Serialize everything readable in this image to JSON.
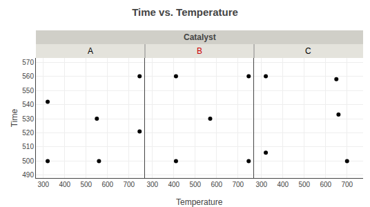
{
  "chart_data": {
    "type": "scatter",
    "title": "Time vs. Temperature",
    "xlabel": "Temperature",
    "ylabel": "Time",
    "facet_label": "Catalyst",
    "color": "#000000",
    "series": [
      {
        "name": "A",
        "label_color": "#000000",
        "x": [
          320,
          550,
          750,
          750,
          320,
          560
        ],
        "values": [
          542,
          530,
          560,
          521,
          500,
          500
        ]
      },
      {
        "name": "B",
        "label_color": "#cc0000",
        "x": [
          410,
          570,
          750,
          410,
          750
        ],
        "values": [
          560,
          530,
          560,
          500,
          500
        ]
      },
      {
        "name": "C",
        "label_color": "#000000",
        "x": [
          320,
          650,
          660,
          320,
          700
        ],
        "values": [
          560,
          558,
          533,
          506,
          500
        ]
      }
    ],
    "xlim": [
      265,
      775
    ],
    "xticks": [
      300,
      400,
      500,
      600,
      700
    ],
    "ylim": [
      488,
      573
    ],
    "yticks": [
      490,
      500,
      510,
      520,
      530,
      540,
      550,
      560,
      570
    ],
    "grid": true
  }
}
